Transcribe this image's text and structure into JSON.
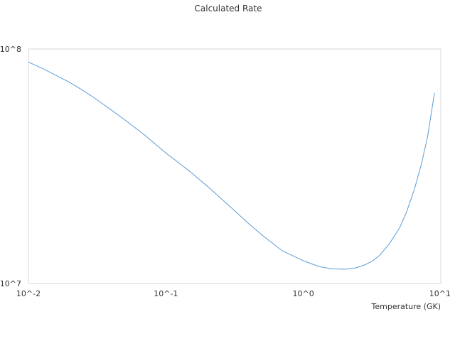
{
  "chart_data": {
    "type": "line",
    "title": "Calculated Rate",
    "xlabel": "Temperature (GK)",
    "ylabel": "",
    "x_scale": "log",
    "y_scale": "log",
    "xlim": [
      0.01,
      10
    ],
    "ylim": [
      10000000,
      100000000
    ],
    "grid": false,
    "legend": "none",
    "x_ticks": [
      {
        "value": 0.01,
        "label": "10^-2"
      },
      {
        "value": 0.1,
        "label": "10^-1"
      },
      {
        "value": 1,
        "label": "10^0"
      },
      {
        "value": 10,
        "label": "10^1"
      }
    ],
    "y_ticks": [
      {
        "value": 10000000,
        "label": "10^7"
      },
      {
        "value": 100000000,
        "label": "10^8"
      }
    ],
    "colors": {
      "series": "#5b9bd5",
      "frame": "#d9d9d9",
      "text": "#333333"
    },
    "series": [
      {
        "x": [
          0.01,
          0.013,
          0.016,
          0.02,
          0.025,
          0.03,
          0.04,
          0.05,
          0.07,
          0.1,
          0.15,
          0.2,
          0.3,
          0.4,
          0.5,
          0.7,
          1.0,
          1.3,
          1.6,
          2.0,
          2.4,
          2.8,
          3.2,
          3.6,
          4.2,
          5.0,
          5.6,
          6.4,
          7.2,
          8.0,
          9.0
        ],
        "values": [
          88000000,
          82000000,
          77000000,
          72000000,
          66500000,
          62000000,
          55000000,
          50000000,
          43000000,
          36000000,
          30000000,
          26000000,
          21000000,
          18000000,
          16100000,
          13800000,
          12500000,
          11800000,
          11550000,
          11500000,
          11650000,
          12000000,
          12500000,
          13200000,
          14700000,
          17200000,
          20000000,
          25000000,
          32000000,
          42000000,
          65000000
        ]
      }
    ]
  }
}
